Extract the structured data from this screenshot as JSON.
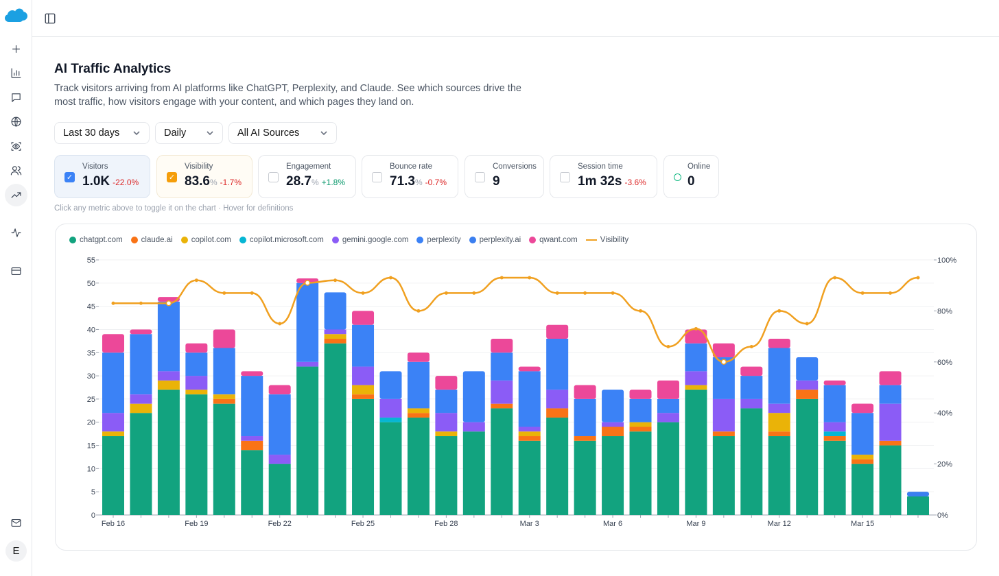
{
  "sidebar": {
    "items": [
      "plus-icon",
      "bar-chart-icon",
      "message-icon",
      "globe-icon",
      "scan-eye-icon",
      "users-icon",
      "trending-up-icon",
      "activity-icon",
      "credit-card-icon"
    ],
    "active": "trending-up-icon",
    "bottom": [
      "mail-icon"
    ],
    "avatar": "E"
  },
  "header": {
    "title": "AI Traffic Analytics",
    "description": "Track visitors arriving from AI platforms like ChatGPT, Perplexity, and Claude. See which sources drive the most traffic, how visitors engage with your content, and which pages they land on."
  },
  "filters": {
    "range": "Last 30 days",
    "interval": "Daily",
    "source": "All AI Sources"
  },
  "metrics": [
    {
      "label": "Visitors",
      "value": "1.0K",
      "unit": "",
      "change": "-22.0%",
      "trend": "neg",
      "checked": true,
      "color": "#3b82f6"
    },
    {
      "label": "Visibility",
      "value": "83.6",
      "unit": "%",
      "change": "-1.7%",
      "trend": "neg",
      "checked": true,
      "color": "#f59e0b"
    },
    {
      "label": "Engagement",
      "value": "28.7",
      "unit": "%",
      "change": "+1.8%",
      "trend": "pos",
      "checked": false
    },
    {
      "label": "Bounce rate",
      "value": "71.3",
      "unit": "%",
      "change": "-0.7%",
      "trend": "neg",
      "checked": false
    },
    {
      "label": "Conversions",
      "value": "9",
      "unit": "",
      "change": "",
      "checked": false
    },
    {
      "label": "Session time",
      "value": "1m 32s",
      "unit": "",
      "change": "-3.6%",
      "trend": "neg",
      "checked": false
    },
    {
      "label": "Online",
      "value": "0",
      "unit": "",
      "change": "",
      "status": "online-ring"
    }
  ],
  "hint": "Click any metric above to toggle it on the chart · Hover for definitions",
  "chart_data": {
    "type": "bar",
    "stacked": true,
    "categories": [
      "Feb 16",
      "Feb 17",
      "Feb 18",
      "Feb 19",
      "Feb 20",
      "Feb 21",
      "Feb 22",
      "Feb 23",
      "Feb 24",
      "Feb 25",
      "Feb 26",
      "Feb 27",
      "Feb 28",
      "Mar 1",
      "Mar 2",
      "Mar 3",
      "Mar 4",
      "Mar 5",
      "Mar 6",
      "Mar 7",
      "Mar 8",
      "Mar 9",
      "Mar 10",
      "Mar 11",
      "Mar 12",
      "Mar 13",
      "Mar 14",
      "Mar 15",
      "Mar 16",
      "Mar 17"
    ],
    "x_tick_labels": [
      "Feb 16",
      "Feb 19",
      "Feb 22",
      "Feb 25",
      "Feb 28",
      "Mar 3",
      "Mar 6",
      "Mar 9",
      "Mar 12",
      "Mar 15"
    ],
    "ylim": [
      0,
      55
    ],
    "y_ticks": [
      0,
      5,
      10,
      15,
      20,
      25,
      30,
      35,
      40,
      45,
      50,
      55
    ],
    "y2lim": [
      0,
      100
    ],
    "y2_ticks": [
      "0%",
      "20%",
      "40%",
      "60%",
      "80%",
      "100%"
    ],
    "grid": true,
    "legend": "top-left",
    "series": [
      {
        "name": "chatgpt.com",
        "color": "#12a37f",
        "values": [
          17,
          22,
          27,
          26,
          24,
          14,
          11,
          32,
          37,
          25,
          20,
          21,
          17,
          18,
          23,
          16,
          21,
          16,
          17,
          18,
          20,
          27,
          17,
          23,
          17,
          25,
          16,
          11,
          15,
          4
        ]
      },
      {
        "name": "claude.ai",
        "color": "#f97316",
        "values": [
          0,
          0,
          0,
          0,
          1,
          2,
          0,
          0,
          1,
          1,
          0,
          1,
          0,
          0,
          1,
          1,
          2,
          1,
          2,
          1,
          0,
          0,
          1,
          0,
          1,
          2,
          1,
          1,
          1,
          0
        ]
      },
      {
        "name": "copilot.com",
        "color": "#eab308",
        "values": [
          1,
          2,
          2,
          1,
          1,
          0,
          0,
          0,
          1,
          2,
          0,
          1,
          1,
          0,
          0,
          1,
          0,
          0,
          0,
          1,
          0,
          1,
          0,
          0,
          4,
          0,
          0,
          1,
          0,
          0
        ]
      },
      {
        "name": "copilot.microsoft.com",
        "color": "#06b6d4",
        "values": [
          0,
          0,
          0,
          0,
          0,
          0,
          0,
          0,
          0,
          0,
          1,
          0,
          0,
          0,
          0,
          0,
          0,
          0,
          0,
          0,
          0,
          0,
          0,
          0,
          0,
          0,
          1,
          0,
          0,
          0
        ]
      },
      {
        "name": "gemini.google.com",
        "color": "#8b5cf6",
        "values": [
          4,
          2,
          2,
          3,
          0,
          1,
          2,
          1,
          1,
          4,
          4,
          0,
          4,
          2,
          5,
          1,
          4,
          0,
          1,
          0,
          2,
          3,
          7,
          2,
          2,
          2,
          2,
          0,
          8,
          0
        ]
      },
      {
        "name": "perplexity",
        "color": "#3b82f6",
        "values": [
          13,
          13,
          15,
          5,
          10,
          13,
          13,
          17,
          8,
          9,
          6,
          10,
          5,
          11,
          6,
          12,
          11,
          8,
          7,
          5,
          3,
          6,
          9,
          5,
          12,
          5,
          8,
          9,
          4,
          0
        ]
      },
      {
        "name": "perplexity.ai",
        "color": "#3b7ff0",
        "values": [
          0,
          0,
          0,
          0,
          0,
          0,
          0,
          0,
          0,
          0,
          0,
          0,
          0,
          0,
          0,
          0,
          0,
          0,
          0,
          0,
          0,
          0,
          0,
          0,
          0,
          0,
          0,
          0,
          0,
          1
        ]
      },
      {
        "name": "qwant.com",
        "color": "#ec4899",
        "values": [
          4,
          1,
          1,
          2,
          4,
          1,
          2,
          1,
          0,
          3,
          0,
          2,
          3,
          0,
          3,
          1,
          3,
          3,
          0,
          2,
          4,
          3,
          3,
          2,
          2,
          0,
          1,
          2,
          3,
          0
        ]
      },
      {
        "name": "Visibility",
        "type": "line",
        "axis": "right",
        "color": "#f0a020",
        "values": [
          83,
          83,
          83,
          92,
          87,
          87,
          75,
          91,
          92,
          87,
          93,
          80,
          87,
          87,
          93,
          93,
          87,
          87,
          87,
          80,
          66,
          73,
          60,
          66,
          80,
          75,
          93,
          87,
          87,
          93
        ]
      }
    ]
  }
}
